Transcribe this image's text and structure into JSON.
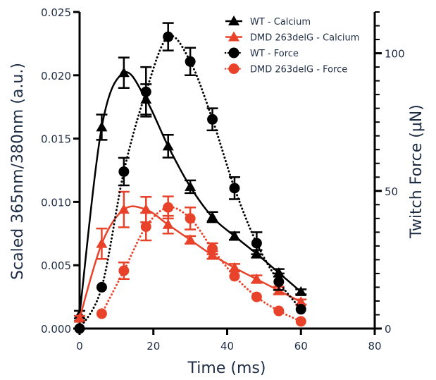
{
  "chart_data": {
    "type": "line",
    "xlabel": "Time (ms)",
    "ylabel": "Scaled 365nm/380nm (a.u.)",
    "y2label": "Twitch Force (μN)",
    "xlim": [
      0,
      80
    ],
    "ylim": [
      0,
      0.025
    ],
    "y2lim": [
      0,
      115
    ],
    "xticks": [
      "0",
      "20",
      "40",
      "60",
      "80"
    ],
    "yticks": [
      "0.000",
      "0.005",
      "0.010",
      "0.015",
      "0.020",
      "0.025"
    ],
    "y2ticks": [
      "0",
      "50",
      "100"
    ],
    "legend_position": "top-right",
    "grid": false,
    "series": [
      {
        "name": "WT - Calcium",
        "axis": "left",
        "color": "#000000",
        "marker": "triangle",
        "line": "solid",
        "x": [
          0,
          6,
          12,
          18,
          24,
          30,
          36,
          42,
          48,
          54,
          60
        ],
        "y": [
          0.0011,
          0.0159,
          0.0202,
          0.0181,
          0.0144,
          0.0112,
          0.0088,
          0.0073,
          0.0059,
          0.0044,
          0.0029
        ],
        "err": [
          0.0003,
          0.001,
          0.0012,
          0.0012,
          0.0009,
          0.0005,
          0.0004,
          0.0003,
          0.0003,
          0.0003,
          0.0002
        ]
      },
      {
        "name": "DMD 263delG - Calcium",
        "axis": "left",
        "color": "#e8432a",
        "marker": "triangle",
        "line": "solid",
        "x": [
          0,
          6,
          12,
          18,
          24,
          30,
          36,
          42,
          48,
          54,
          60
        ],
        "y": [
          0.0008,
          0.0067,
          0.0094,
          0.0094,
          0.0082,
          0.007,
          0.0058,
          0.0048,
          0.0039,
          0.003,
          0.0021
        ],
        "err": [
          0.0002,
          0.0012,
          0.0014,
          0.001,
          0.0007,
          0.0003,
          0.0003,
          0.0003,
          0.0003,
          0.0003,
          0.0002
        ]
      },
      {
        "name": "WT - Force",
        "axis": "right",
        "color": "#000000",
        "marker": "circle",
        "line": "dotted",
        "x": [
          0,
          6,
          12,
          18,
          24,
          30,
          36,
          42,
          48,
          54,
          60
        ],
        "y": [
          0,
          15,
          57,
          86,
          106,
          97,
          76,
          51,
          31,
          17,
          7
        ],
        "err": [
          0,
          0,
          5,
          9,
          5,
          5,
          4,
          4,
          4,
          3,
          0
        ]
      },
      {
        "name": "DMD 263delG - Force",
        "axis": "right",
        "color": "#e8432a",
        "marker": "circle",
        "line": "dotted",
        "x": [
          6,
          12,
          18,
          24,
          30,
          36,
          42,
          48,
          54,
          60
        ],
        "y": [
          5.4,
          21,
          37,
          44,
          40,
          29,
          19,
          11.5,
          6.4,
          2.6
        ],
        "err": [
          0,
          3,
          5,
          4,
          4,
          2,
          0,
          0,
          0,
          0
        ]
      }
    ]
  }
}
